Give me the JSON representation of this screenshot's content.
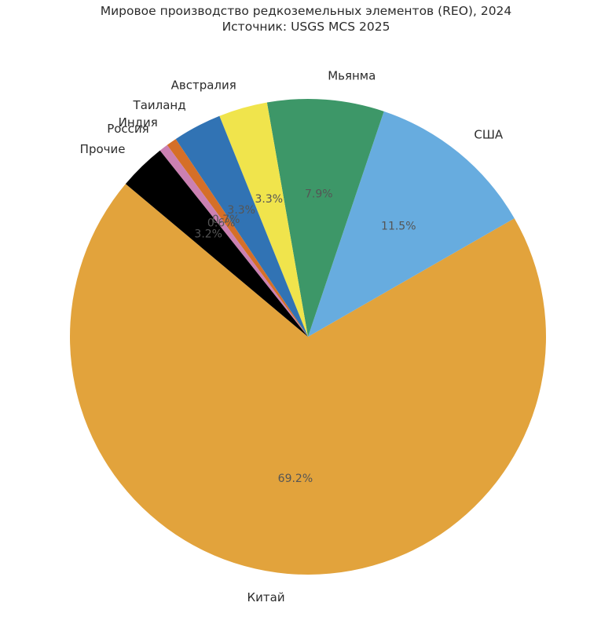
{
  "header": {
    "title": "Мировое производство редкоземельных элементов (REO), 2024",
    "subtitle": "Источник: USGS MCS 2025"
  },
  "chart_data": {
    "type": "pie",
    "title": "Мировое производство редкоземельных элементов (REO), 2024",
    "subtitle": "Источник: USGS MCS 2025",
    "source": "USGS MCS 2025",
    "year": "2024",
    "start_angle_deg": 140,
    "direction": "counterclockwise",
    "pct_distance": 0.6,
    "label_distance": 1.1,
    "legend": "none",
    "background": "#ffffff",
    "label_text_color": "#2b2b2b",
    "pct_text_color": "#555555",
    "slices": [
      {
        "key": "china",
        "label": "Китай",
        "pct": 69.2,
        "pct_label": "69.2%",
        "color": "#E2A33C"
      },
      {
        "key": "usa",
        "label": "США",
        "pct": 11.5,
        "pct_label": "11.5%",
        "color": "#67ACDF"
      },
      {
        "key": "myanmar",
        "label": "Мьянма",
        "pct": 7.9,
        "pct_label": "7.9%",
        "color": "#3D9768"
      },
      {
        "key": "australia",
        "label": "Австралия",
        "pct": 3.3,
        "pct_label": "3.3%",
        "color": "#F0E44C"
      },
      {
        "key": "thailand",
        "label": "Таиланд",
        "pct": 3.3,
        "pct_label": "3.3%",
        "color": "#3173B4"
      },
      {
        "key": "india",
        "label": "Индия",
        "pct": 0.7,
        "pct_label": "0.7%",
        "color": "#D56F28"
      },
      {
        "key": "russia",
        "label": "Россия",
        "pct": 0.6,
        "pct_label": "0.6%",
        "color": "#CB80B2"
      },
      {
        "key": "others",
        "label": "Прочие",
        "pct": 3.2,
        "pct_label": "3.2%",
        "color": "#000000"
      }
    ]
  }
}
